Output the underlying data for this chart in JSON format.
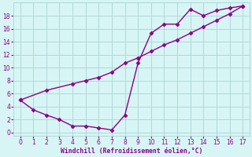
{
  "line1_x": [
    0,
    1,
    2,
    3,
    4,
    5,
    6,
    7,
    8,
    9,
    10,
    11,
    12,
    13,
    14,
    15,
    16,
    17
  ],
  "line1_y": [
    5.0,
    3.5,
    2.7,
    2.0,
    1.0,
    1.0,
    0.7,
    0.4,
    2.7,
    10.7,
    15.3,
    16.7,
    16.7,
    19.0,
    18.0,
    18.8,
    19.2,
    19.5
  ],
  "line2_x": [
    0,
    2,
    4,
    5,
    6,
    7,
    8,
    9,
    10,
    11,
    12,
    13,
    14,
    15,
    16,
    17
  ],
  "line2_y": [
    5.0,
    6.5,
    7.5,
    8.0,
    8.5,
    9.3,
    10.7,
    11.5,
    12.5,
    13.5,
    14.3,
    15.3,
    16.3,
    17.3,
    18.3,
    19.5
  ],
  "line_color": "#8B008B",
  "bg_color": "#d8f5f5",
  "grid_color": "#b0d8d8",
  "xlabel": "Windchill (Refroidissement éolien,°C)",
  "xlabel_color": "#8B008B",
  "xlim": [
    -0.5,
    17.5
  ],
  "ylim": [
    -0.5,
    20
  ],
  "xticks": [
    0,
    1,
    2,
    3,
    4,
    5,
    6,
    7,
    8,
    9,
    10,
    11,
    12,
    13,
    14,
    15,
    16,
    17
  ],
  "yticks": [
    0,
    2,
    4,
    6,
    8,
    10,
    12,
    14,
    16,
    18
  ],
  "marker": "D",
  "markersize": 2.5,
  "linewidth": 1.0
}
